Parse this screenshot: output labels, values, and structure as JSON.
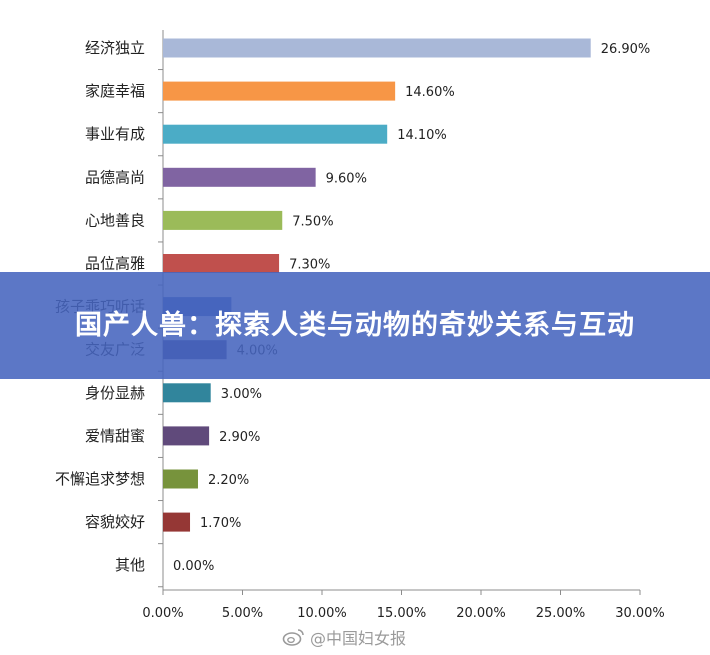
{
  "chart_data": {
    "type": "bar",
    "orientation": "horizontal",
    "categories": [
      "经济独立",
      "家庭幸福",
      "事业有成",
      "品德高尚",
      "心地善良",
      "品位高雅",
      "孩子乖巧听话",
      "交友广泛",
      "身份显赫",
      "爱情甜蜜",
      "不懈追求梦想",
      "容貌姣好",
      "其他"
    ],
    "values": [
      26.9,
      14.6,
      14.1,
      9.6,
      7.5,
      7.3,
      4.3,
      4.0,
      3.0,
      2.9,
      2.2,
      1.7,
      0.0
    ],
    "value_labels": [
      "26.90%",
      "14.60%",
      "14.10%",
      "9.60%",
      "7.50%",
      "7.30%",
      "",
      "4.00%",
      "3.00%",
      "2.90%",
      "2.20%",
      "1.70%",
      "0.00%"
    ],
    "colors": [
      "#a9b8d8",
      "#f79646",
      "#4bacc6",
      "#8064a2",
      "#9bbb59",
      "#c0504d",
      "#4f6fbf",
      "#4a4a8c",
      "#31859c",
      "#604a7b",
      "#77933c",
      "#953735",
      "#7f7f7f"
    ],
    "xlim": [
      0,
      30
    ],
    "xticks": [
      "0.00%",
      "5.00%",
      "10.00%",
      "15.00%",
      "20.00%",
      "25.00%",
      "30.00%"
    ],
    "xtick_values": [
      0,
      5,
      10,
      15,
      20,
      25,
      30
    ],
    "grid": false,
    "title": "",
    "xlabel": "",
    "ylabel": ""
  },
  "overlay": {
    "title": "国产人兽：探索人类与动物的奇妙关系与互动"
  },
  "watermark": {
    "text": "@中国妇女报",
    "icon": "weibo-icon"
  }
}
